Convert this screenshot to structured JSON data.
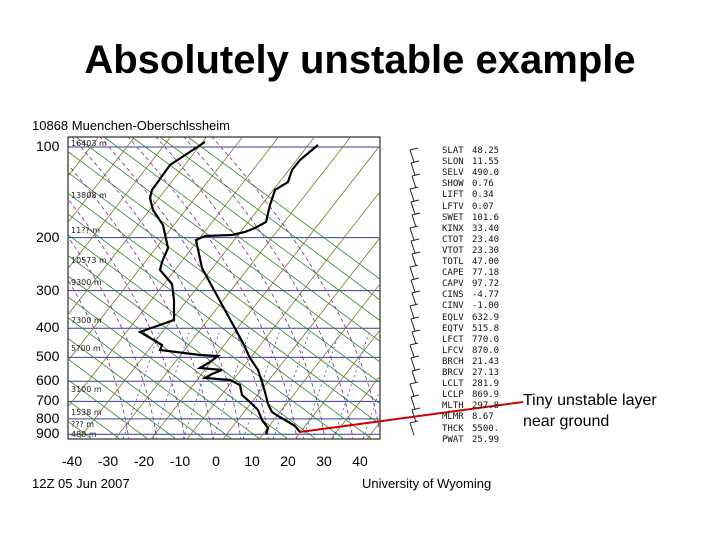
{
  "title": "Absolutely unstable example",
  "sounding": {
    "station": "10868  Muenchen-Oberschlssheim",
    "date": "12Z 05 Jun 2007",
    "source": "University of Wyoming",
    "pressure_labels": [
      "100",
      "200",
      "300",
      "400",
      "500",
      "600",
      "700",
      "800",
      "900"
    ],
    "temperature_labels": [
      "-40",
      "-30",
      "-20",
      "-10",
      "0",
      "10",
      "20",
      "30",
      "40"
    ],
    "height_labels": [
      "16403 m",
      "13808 m",
      "11?? m",
      "10573 m",
      "9300 m",
      "7300 m",
      "5?00 m",
      "3100 m",
      "1538 m",
      "??? m",
      "480 m"
    ],
    "indices": [
      {
        "key": "SLAT",
        "value": "48.25"
      },
      {
        "key": "SLON",
        "value": "11.55"
      },
      {
        "key": "SELV",
        "value": "490.0"
      },
      {
        "key": "SHOW",
        "value": "0.76"
      },
      {
        "key": "LIFT",
        "value": "0.34"
      },
      {
        "key": "LFTV",
        "value": "0.07"
      },
      {
        "key": "SWET",
        "value": "101.6"
      },
      {
        "key": "KINX",
        "value": "33.40"
      },
      {
        "key": "CTOT",
        "value": "23.40"
      },
      {
        "key": "VTOT",
        "value": "23.30"
      },
      {
        "key": "TOTL",
        "value": "47.00"
      },
      {
        "key": "CAPE",
        "value": "77.18"
      },
      {
        "key": "CAPV",
        "value": "97.72"
      },
      {
        "key": "CINS",
        "value": "-4.77"
      },
      {
        "key": "CINV",
        "value": "-1.00"
      },
      {
        "key": "EQLV",
        "value": "632.9"
      },
      {
        "key": "EQTV",
        "value": "515.8"
      },
      {
        "key": "LFCT",
        "value": "770.0"
      },
      {
        "key": "LFCV",
        "value": "870.0"
      },
      {
        "key": "BRCH",
        "value": "21.43"
      },
      {
        "key": "BRCV",
        "value": "27.13"
      },
      {
        "key": "LCLT",
        "value": "281.9"
      },
      {
        "key": "LCLP",
        "value": "869.9"
      },
      {
        "key": "MLTH",
        "value": "297.8"
      },
      {
        "key": "MLMR",
        "value": "8.67"
      },
      {
        "key": "THCK",
        "value": "5500."
      },
      {
        "key": "PWAT",
        "value": "25.99"
      }
    ]
  },
  "annotation": {
    "text_line1": "Tiny unstable layer",
    "text_line2": "near ground",
    "arrow_color": "#cc0000"
  },
  "colors": {
    "isobar": "#3a3a9a",
    "isotherm": "#7a7a2a",
    "dry_adiabat": "#2a8a2a",
    "moist_adiabat": "#7a2a9a",
    "mixing_ratio": "#4a4ad0",
    "profile": "#000000"
  }
}
